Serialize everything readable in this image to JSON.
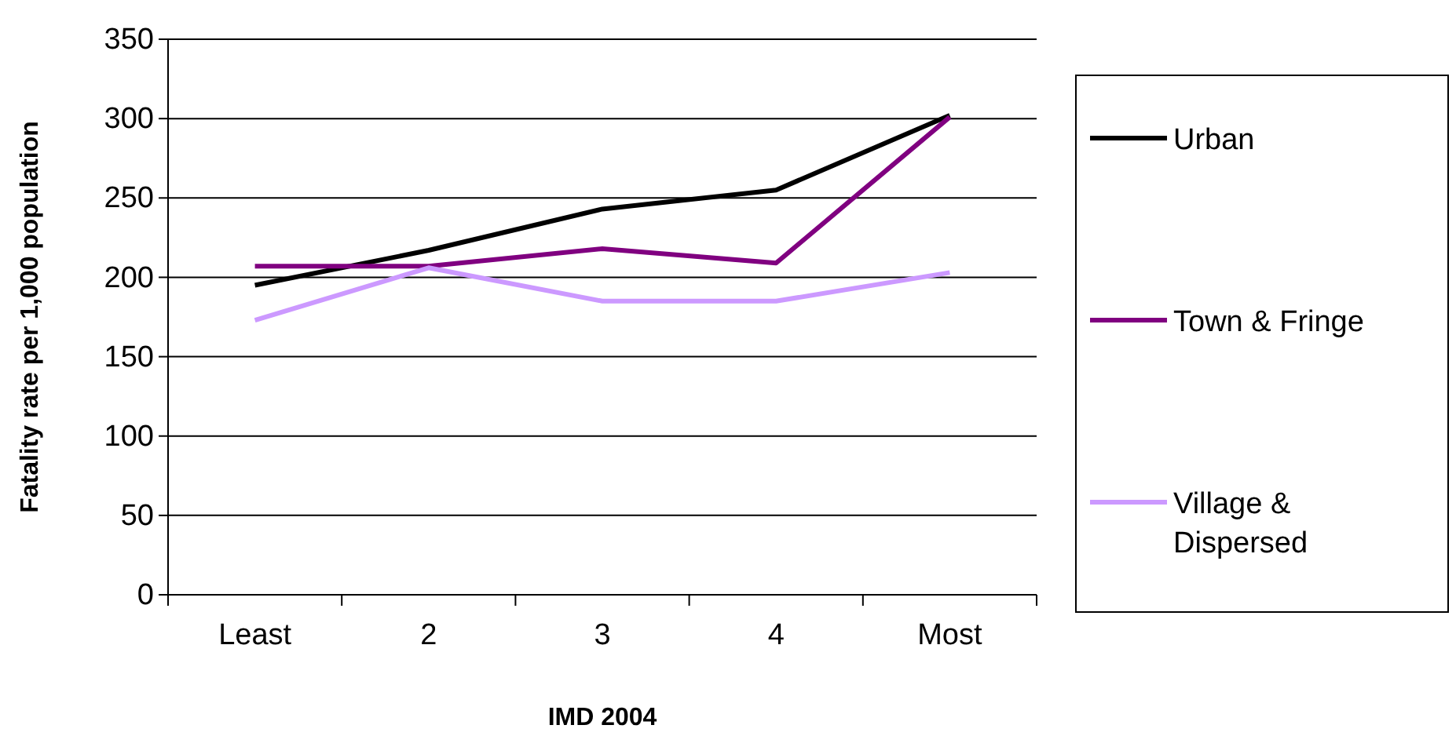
{
  "chart_data": {
    "type": "line",
    "xlabel": "IMD 2004",
    "ylabel": "Fatality rate per 1,000 population",
    "categories": [
      "Least",
      "2",
      "3",
      "4",
      "Most"
    ],
    "series": [
      {
        "name": "Urban",
        "color": "#000000",
        "values": [
          195,
          217,
          243,
          255,
          302
        ]
      },
      {
        "name": "Town & Fringe",
        "color": "#800080",
        "values": [
          207,
          207,
          218,
          209,
          301
        ]
      },
      {
        "name": "Village & Dispersed",
        "color": "#cc99ff",
        "values": [
          173,
          206,
          185,
          185,
          203
        ]
      }
    ],
    "ylim": [
      0,
      350
    ],
    "yticks": [
      0,
      50,
      100,
      150,
      200,
      250,
      300,
      350
    ],
    "grid": "y",
    "legend": "right",
    "marker": "none",
    "line_style": "solid"
  }
}
